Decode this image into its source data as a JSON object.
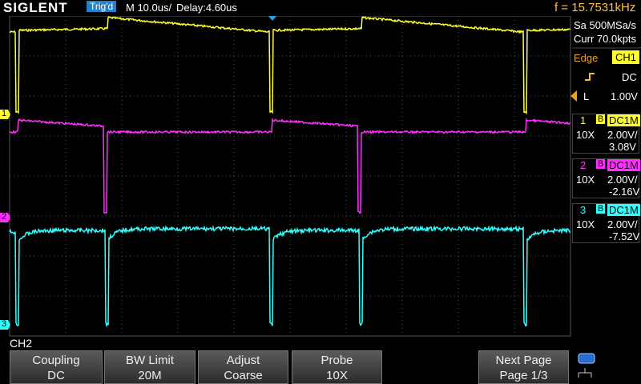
{
  "header": {
    "brand": "SIGLENT",
    "trigger_status": "Trig'd",
    "timebase": "M 10.0us/",
    "delay": "Delay:4.60us",
    "frequency": "f = 15.7531kHz"
  },
  "side_panel": {
    "sample_rate": "Sa 500MSa/s",
    "memory": "Curr 70.0kpts",
    "trigger": {
      "type": "Edge",
      "source": "CH1",
      "coupling": "DC",
      "level_label": "L",
      "level": "1.00V"
    },
    "channels": [
      {
        "number": "1",
        "bw": "B",
        "coupling": "DC1M",
        "probe": "10X",
        "scale": "2.00V/",
        "offset": "3.08V"
      },
      {
        "number": "2",
        "bw": "B",
        "coupling": "DC1M",
        "probe": "10X",
        "scale": "2.00V/",
        "offset": "-2.16V"
      },
      {
        "number": "3",
        "bw": "B",
        "coupling": "DC1M",
        "probe": "10X",
        "scale": "2.00V/",
        "offset": "-7.52V"
      }
    ]
  },
  "markers": [
    "1",
    "2",
    "3"
  ],
  "menu": {
    "title": "CH2",
    "buttons": [
      {
        "label": "Coupling",
        "value": "DC"
      },
      {
        "label": "BW Limit",
        "value": "20M"
      },
      {
        "label": "Adjust",
        "value": "Coarse"
      },
      {
        "label": "Probe",
        "value": "10X"
      },
      {
        "label": "Next Page",
        "value": "Page 1/3"
      }
    ]
  }
}
